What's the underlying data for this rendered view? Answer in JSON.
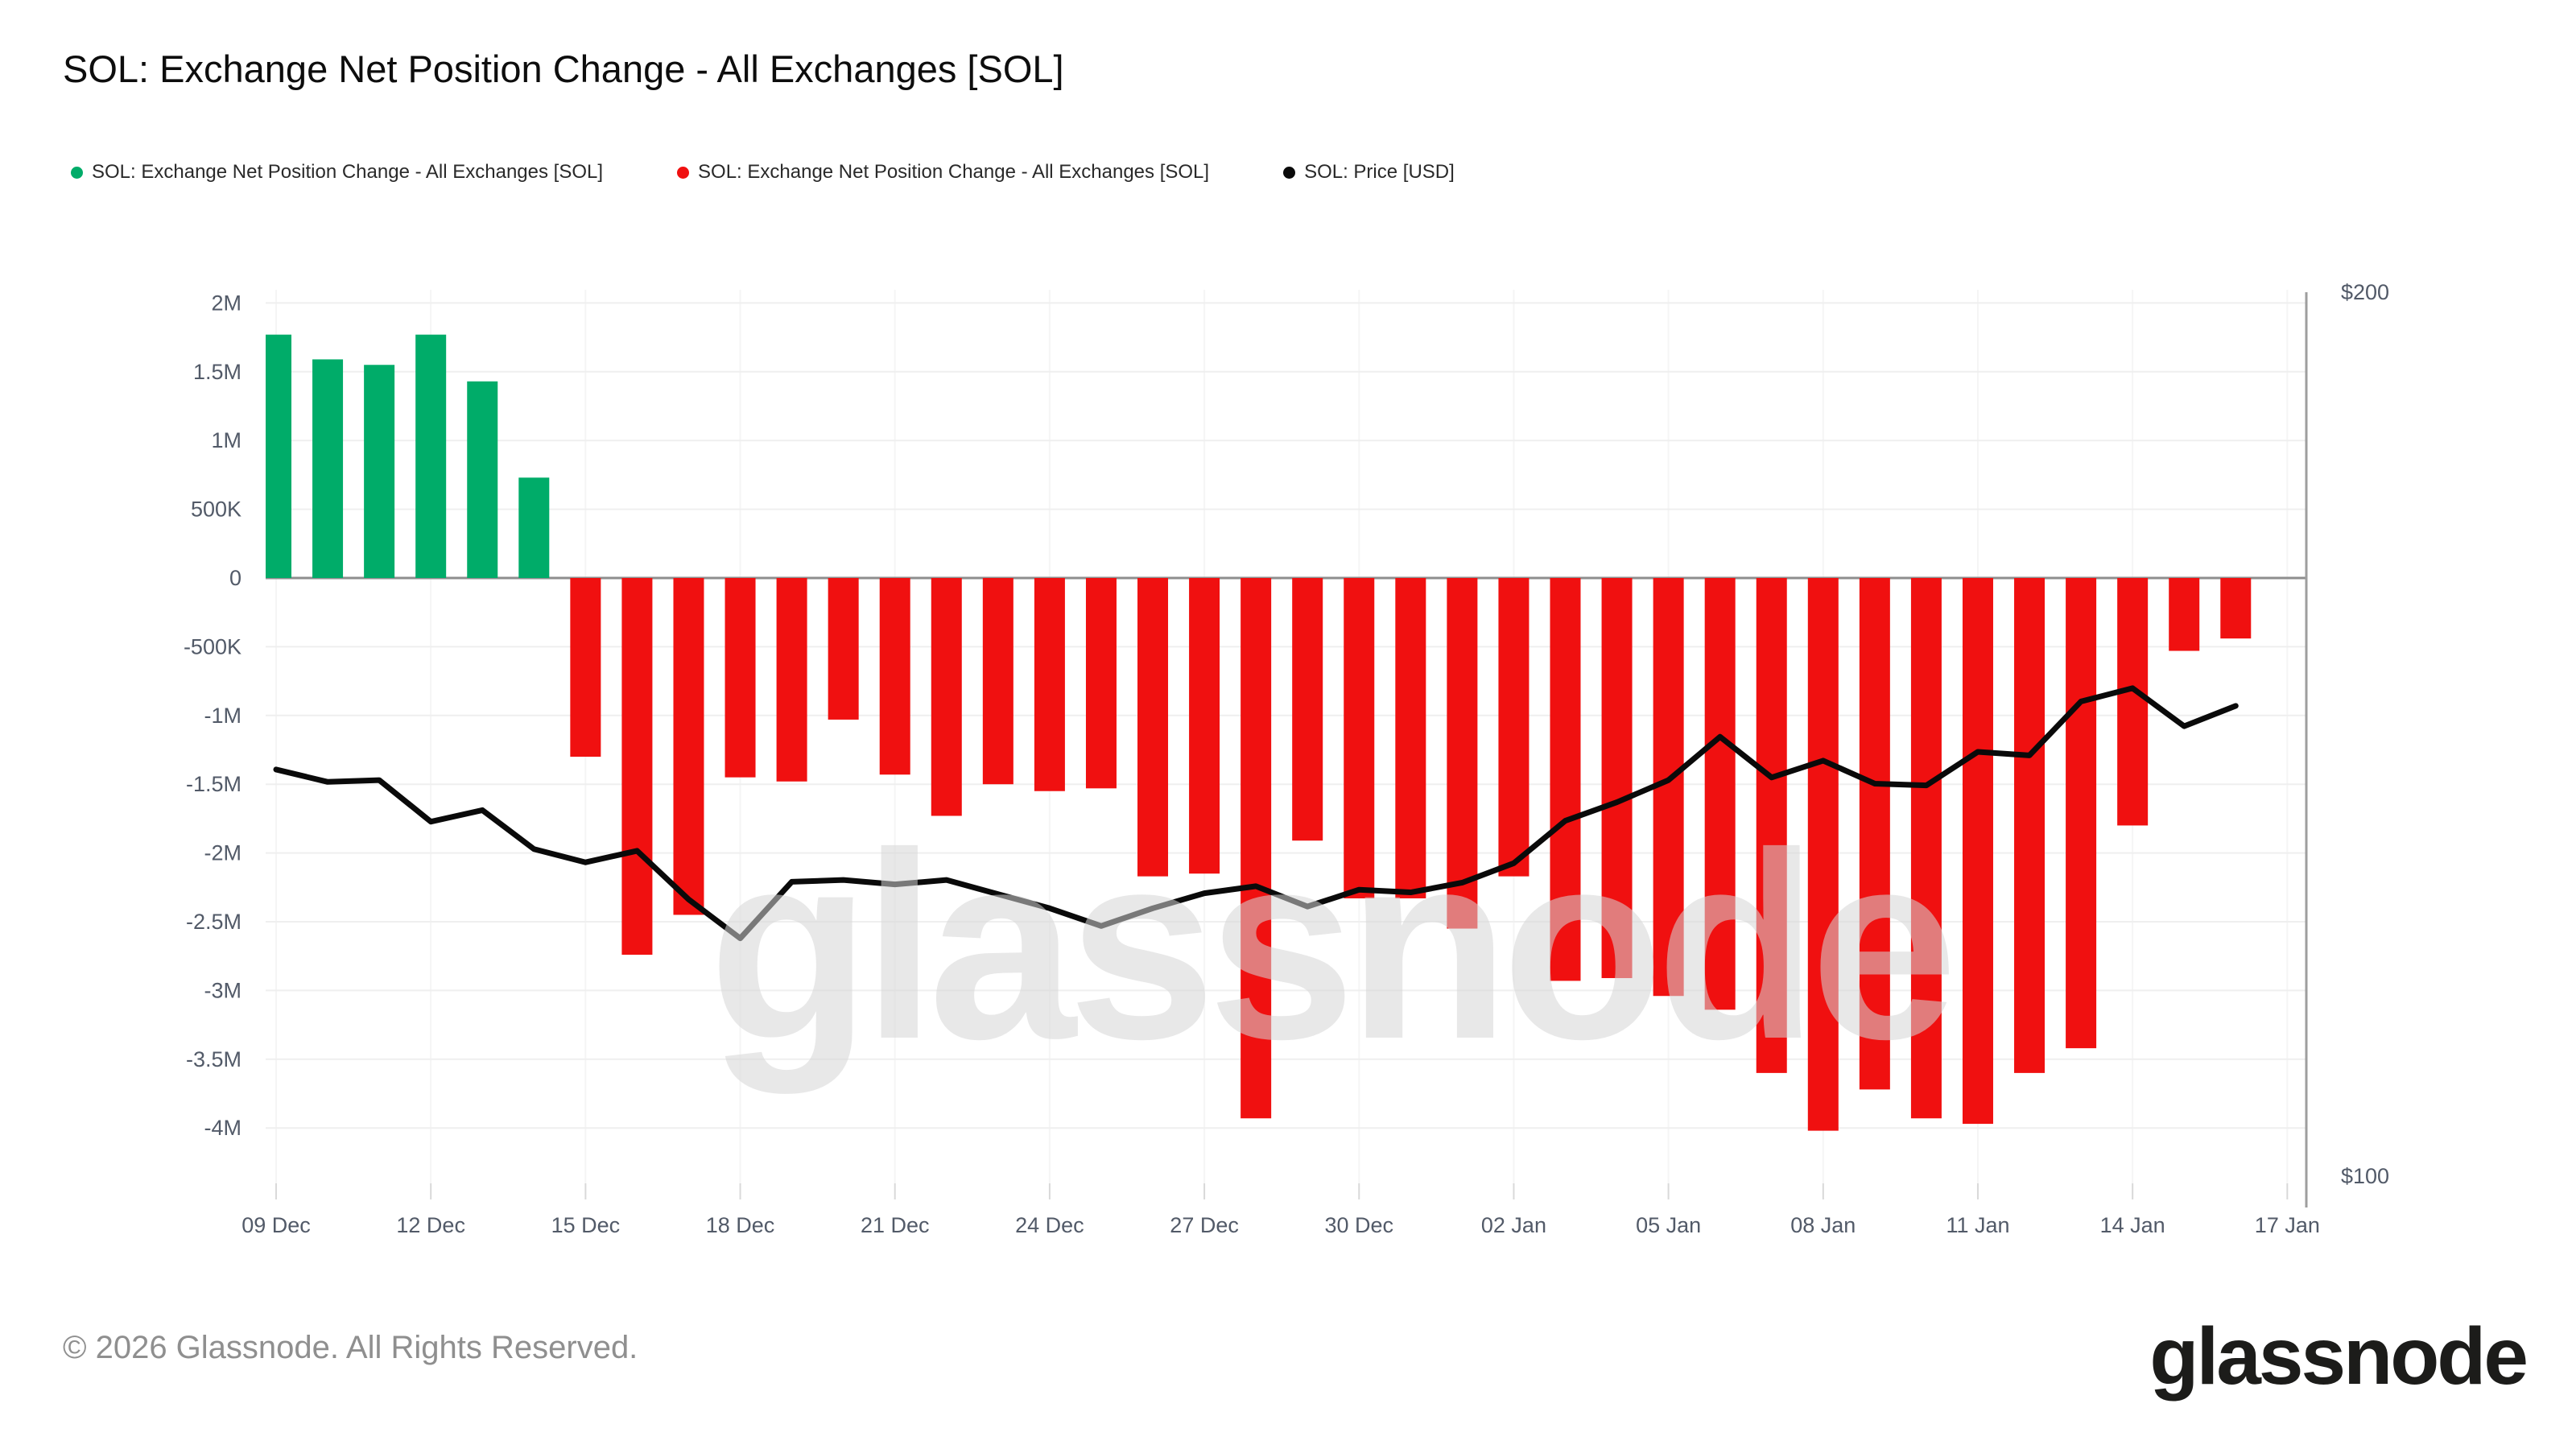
{
  "title": "SOL: Exchange Net Position Change - All Exchanges [SOL]",
  "legend": [
    {
      "label": "SOL: Exchange Net Position Change - All Exchanges [SOL]",
      "color": "#00ac69"
    },
    {
      "label": "SOL: Exchange Net Position Change - All Exchanges [SOL]",
      "color": "#f01010"
    },
    {
      "label": "SOL: Price [USD]",
      "color": "#0a0a0a"
    }
  ],
  "watermark": "glassnode",
  "footer": {
    "copyright": "© 2026 Glassnode. All Rights Reserved."
  },
  "logo_text": "glassnode",
  "chart_data": {
    "type": "bar+line",
    "title": "SOL: Exchange Net Position Change - All Exchanges [SOL]",
    "x": [
      "09 Dec",
      "10 Dec",
      "11 Dec",
      "12 Dec",
      "13 Dec",
      "14 Dec",
      "15 Dec",
      "16 Dec",
      "17 Dec",
      "18 Dec",
      "19 Dec",
      "20 Dec",
      "21 Dec",
      "22 Dec",
      "23 Dec",
      "24 Dec",
      "25 Dec",
      "26 Dec",
      "27 Dec",
      "28 Dec",
      "29 Dec",
      "30 Dec",
      "31 Dec",
      "01 Jan",
      "02 Jan",
      "03 Jan",
      "04 Jan",
      "05 Jan",
      "06 Jan",
      "07 Jan",
      "08 Jan",
      "09 Jan",
      "10 Jan",
      "11 Jan",
      "12 Jan",
      "13 Jan",
      "14 Jan",
      "15 Jan",
      "16 Jan"
    ],
    "x_tick_labels": [
      "09 Dec",
      "12 Dec",
      "15 Dec",
      "18 Dec",
      "21 Dec",
      "24 Dec",
      "27 Dec",
      "30 Dec",
      "02 Jan",
      "05 Jan",
      "08 Jan",
      "11 Jan",
      "14 Jan",
      "17 Jan"
    ],
    "series": [
      {
        "name": "SOL: Exchange Net Position Change - All Exchanges [SOL]",
        "type": "bar",
        "axis": "left",
        "unit": "SOL (millions)",
        "positive_color": "#00ac69",
        "negative_color": "#f01010",
        "values_millions": [
          1.77,
          1.59,
          1.55,
          1.77,
          1.43,
          0.73,
          -1.3,
          -2.74,
          -2.45,
          -1.45,
          -1.48,
          -1.03,
          -1.43,
          -1.73,
          -1.5,
          -1.55,
          -1.53,
          -2.17,
          -2.15,
          -3.93,
          -1.91,
          -2.33,
          -2.33,
          -2.55,
          -2.17,
          -2.93,
          -2.91,
          -3.04,
          -3.14,
          -3.6,
          -4.02,
          -3.72,
          -3.93,
          -3.97,
          -3.6,
          -3.42,
          -1.8,
          -0.53,
          -0.44
        ]
      },
      {
        "name": "SOL: Price [USD]",
        "type": "line",
        "axis": "right",
        "unit": "USD",
        "color": "#0a0a0a",
        "values": [
          146.0,
          144.6,
          144.8,
          140.1,
          141.4,
          137.0,
          135.5,
          136.8,
          131.3,
          126.9,
          133.3,
          133.5,
          133.0,
          133.5,
          131.9,
          130.3,
          128.3,
          130.3,
          132.0,
          132.8,
          130.5,
          132.4,
          132.1,
          133.2,
          135.4,
          140.2,
          142.3,
          144.8,
          149.7,
          145.1,
          147.0,
          144.4,
          144.2,
          148.0,
          147.6,
          153.7,
          155.2,
          150.9,
          153.2
        ]
      }
    ],
    "left_axis": {
      "tick_labels": [
        "2M",
        "1.5M",
        "1M",
        "500K",
        "0",
        "-500K",
        "-1M",
        "-1.5M",
        "-2M",
        "-2.5M",
        "-3M",
        "-3.5M",
        "-4M"
      ],
      "tick_values_millions": [
        2,
        1.5,
        1,
        0.5,
        0,
        -0.5,
        -1,
        -1.5,
        -2,
        -2.5,
        -3,
        -3.5,
        -4
      ],
      "range_millions": [
        -4.55,
        2.15
      ]
    },
    "right_axis": {
      "tick_labels": [
        "$200",
        "$100"
      ],
      "tick_values": [
        200,
        100
      ],
      "range": [
        100,
        200
      ]
    },
    "grid": true,
    "legend_position": "top"
  }
}
